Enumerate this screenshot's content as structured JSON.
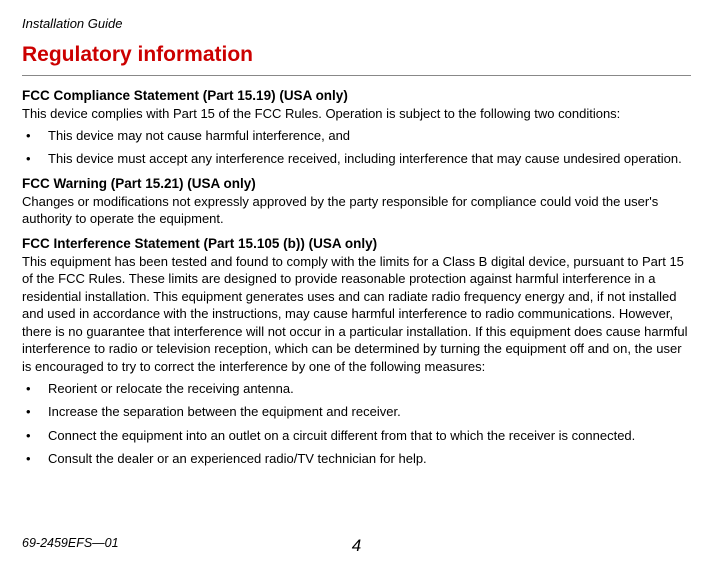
{
  "header": "Installation  Guide",
  "title": "Regulatory information",
  "sections": {
    "s1": {
      "heading": "FCC Compliance Statement (Part 15.19) (USA only)",
      "para": "This device complies with Part 15 of the FCC Rules. Operation is subject to the following two conditions:",
      "bullets": [
        "This device may not cause harmful interference, and",
        "This device must accept any interference received, including interference that may cause undesired operation."
      ]
    },
    "s2": {
      "heading": "FCC Warning (Part 15.21) (USA only)",
      "para": "Changes or modifications not expressly approved by the party responsible for compliance could void the user's authority to operate the equipment."
    },
    "s3": {
      "heading": "FCC Interference Statement (Part 15.105 (b)) (USA only)",
      "para": "This equipment has been tested and found to comply with the limits for a Class B digital device, pursuant to Part 15 of the FCC Rules. These limits are designed to provide reasonable protection against harmful interference in a residential installation. This equipment generates uses and can radiate radio frequency energy and, if not installed and used in accordance with the instructions, may cause harmful interference to radio communications. However, there is no guarantee that interference will not occur in a particular installation. If this equipment does cause harmful interference to radio or television reception, which can be determined by turning the equipment off and on, the user is encouraged to try to correct the interference by one of the following measures:",
      "bullets": [
        "Reorient or relocate the receiving antenna.",
        "Increase the separation between the equipment and receiver.",
        "Connect the equipment into an outlet on a circuit different from that to which the receiver is connected.",
        "Consult the dealer or an experienced radio/TV technician for help."
      ]
    }
  },
  "footer": {
    "left": "69-2459EFS—01",
    "page": "4"
  }
}
